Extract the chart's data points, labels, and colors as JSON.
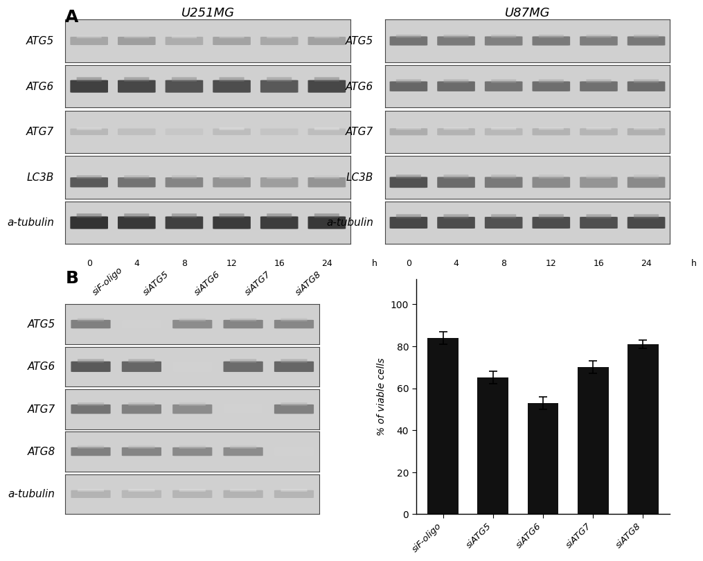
{
  "panel_A_title_left": "U251MG",
  "panel_A_title_right": "U87MG",
  "panel_A_row_labels": [
    "ATG5",
    "ATG6",
    "ATG7",
    "LC3B",
    "a-tubulin"
  ],
  "panel_B_row_labels": [
    "ATG5",
    "ATG6",
    "ATG7",
    "ATG8",
    "a-tubulin"
  ],
  "panel_B_col_labels": [
    "siF-oligo",
    "siATG5",
    "siATG6",
    "siATG7",
    "siATG8"
  ],
  "bar_values": [
    84,
    65,
    53,
    70,
    81
  ],
  "bar_errors": [
    3,
    3,
    3,
    3,
    2
  ],
  "bar_color": "#111111",
  "ylabel": "% of viable cells",
  "yticks": [
    0,
    20,
    40,
    60,
    80,
    100
  ],
  "bg_color": "#ffffff",
  "panel_label_A": "A",
  "panel_label_B": "B",
  "font_size_labels": 11,
  "font_size_title": 13,
  "font_size_panel": 18
}
